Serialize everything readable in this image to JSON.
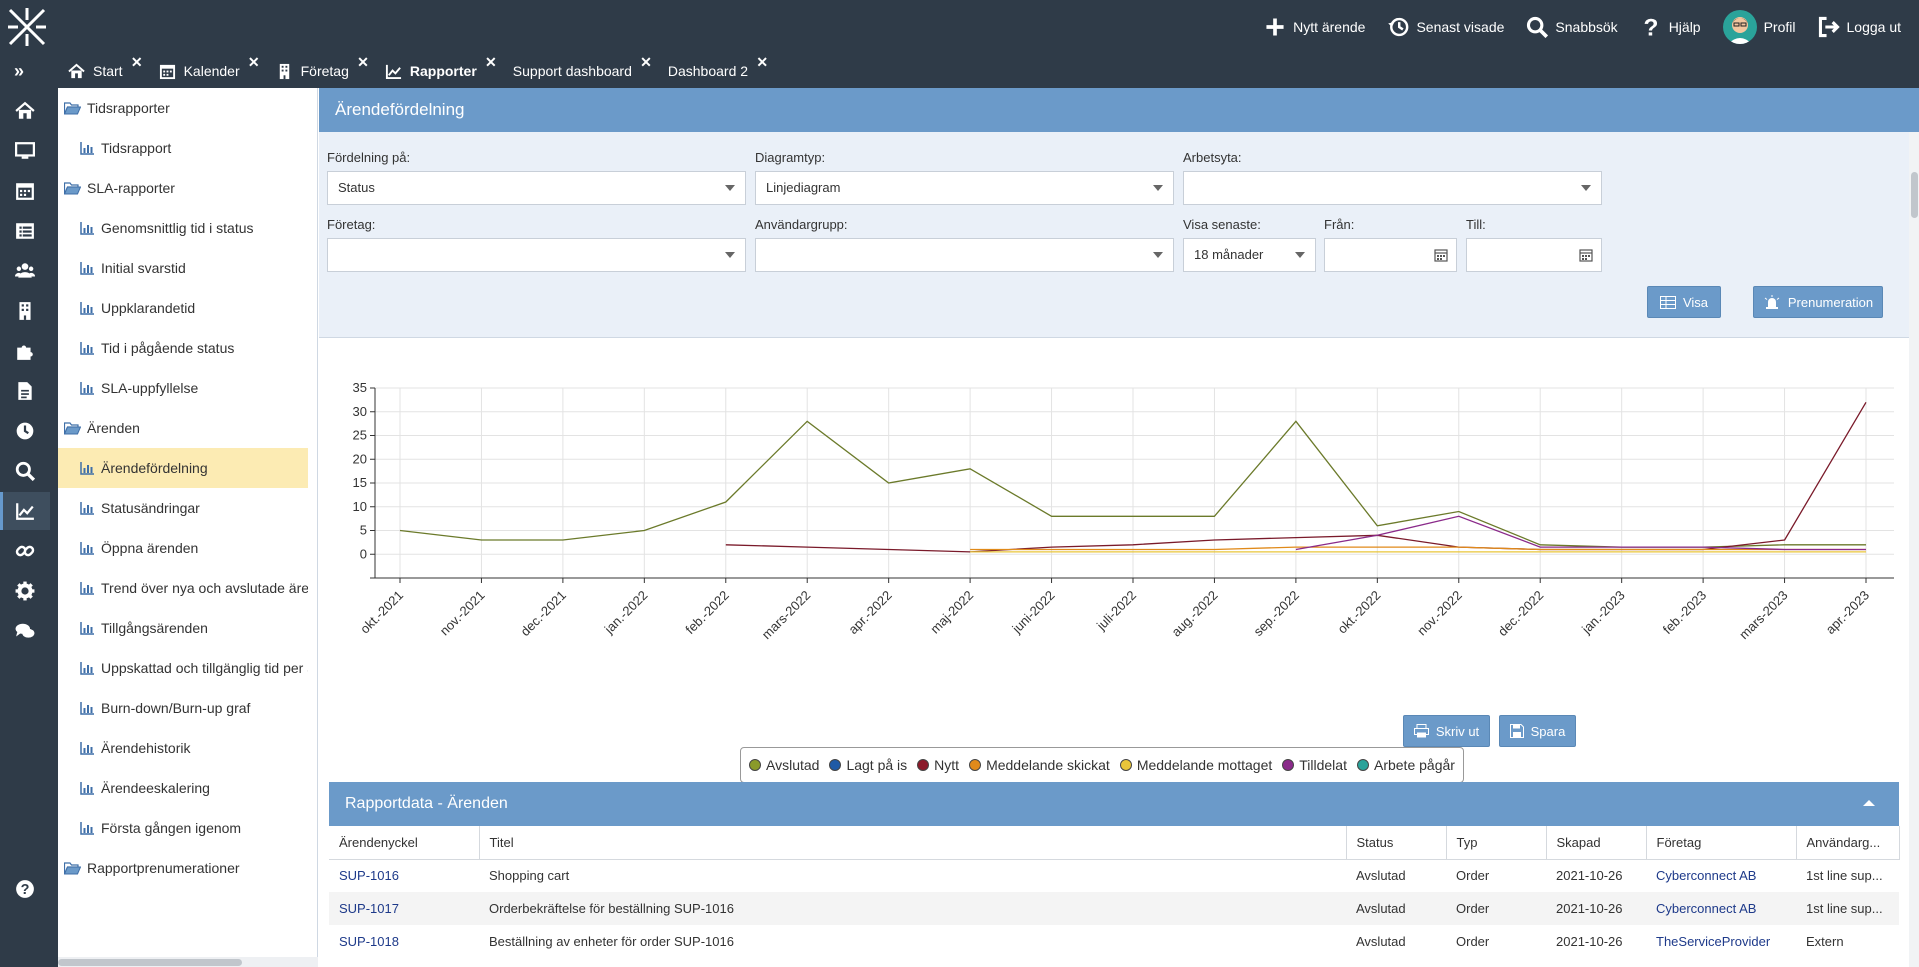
{
  "topbar": {
    "actions": [
      {
        "icon": "plus-icon",
        "label": "Nytt ärende"
      },
      {
        "icon": "history-icon",
        "label": "Senast visade"
      },
      {
        "icon": "search-icon",
        "label": "Snabbsök"
      },
      {
        "icon": "question-icon",
        "label": "Hjälp"
      },
      {
        "icon": "avatar",
        "label": "Profil"
      },
      {
        "icon": "logout-icon",
        "label": "Logga ut"
      }
    ]
  },
  "tabs": [
    {
      "icon": "home-icon",
      "label": "Start"
    },
    {
      "icon": "calendar-icon",
      "label": "Kalender"
    },
    {
      "icon": "building-icon",
      "label": "Företag"
    },
    {
      "icon": "chart-icon",
      "label": "Rapporter",
      "active": true
    },
    {
      "icon": "",
      "label": "Support dashboard"
    },
    {
      "icon": "",
      "label": "Dashboard 2"
    }
  ],
  "rail": [
    "home-icon",
    "monitor-icon",
    "calendar-icon",
    "list-icon",
    "users-icon",
    "building-icon",
    "puzzle-icon",
    "document-icon",
    "clock-icon",
    "search-icon",
    "chart-icon",
    "link-icon",
    "gear-icon",
    "chat-icon",
    "help-icon"
  ],
  "tree": [
    {
      "type": "folder",
      "label": "Tidsrapporter"
    },
    {
      "type": "leaf",
      "label": "Tidsrapport"
    },
    {
      "type": "folder",
      "label": "SLA-rapporter"
    },
    {
      "type": "leaf",
      "label": "Genomsnittlig tid i status"
    },
    {
      "type": "leaf",
      "label": "Initial svarstid"
    },
    {
      "type": "leaf",
      "label": "Uppklarandetid"
    },
    {
      "type": "leaf",
      "label": "Tid i pågående status"
    },
    {
      "type": "leaf",
      "label": "SLA-uppfyllelse"
    },
    {
      "type": "folder",
      "label": "Ärenden"
    },
    {
      "type": "leaf",
      "label": "Ärendefördelning",
      "selected": true
    },
    {
      "type": "leaf",
      "label": "Statusändringar"
    },
    {
      "type": "leaf",
      "label": "Öppna ärenden"
    },
    {
      "type": "leaf",
      "label": "Trend över nya och avslutade ärer"
    },
    {
      "type": "leaf",
      "label": "Tillgångsärenden"
    },
    {
      "type": "leaf",
      "label": "Uppskattad och tillgänglig tid per ä"
    },
    {
      "type": "leaf",
      "label": "Burn-down/Burn-up graf"
    },
    {
      "type": "leaf",
      "label": "Ärendehistorik"
    },
    {
      "type": "leaf",
      "label": "Ärendeeskalering"
    },
    {
      "type": "leaf",
      "label": "Första gången igenom"
    },
    {
      "type": "folder",
      "label": "Rapportprenumerationer"
    }
  ],
  "page": {
    "title": "Ärendefördelning"
  },
  "filters": {
    "fordelning": {
      "label": "Fördelning på:",
      "value": "Status"
    },
    "diagramtyp": {
      "label": "Diagramtyp:",
      "value": "Linjediagram"
    },
    "arbetsyta": {
      "label": "Arbetsyta:",
      "value": ""
    },
    "foretag": {
      "label": "Företag:",
      "value": ""
    },
    "anvandargrupp": {
      "label": "Användargrupp:",
      "value": ""
    },
    "visa_senaste": {
      "label": "Visa senaste:",
      "value": "18 månader"
    },
    "fran": {
      "label": "Från:",
      "value": ""
    },
    "till": {
      "label": "Till:",
      "value": ""
    },
    "visa_button": "Visa",
    "prenumeration_button": "Prenumeration"
  },
  "actions": {
    "print": "Skriv ut",
    "save": "Spara"
  },
  "chart_data": {
    "type": "line",
    "title": "",
    "xlabel": "",
    "ylabel": "",
    "ylim": [
      -5,
      35
    ],
    "yticks": [
      0,
      5,
      10,
      15,
      20,
      25,
      30,
      35
    ],
    "grid": true,
    "legend_position": "bottom",
    "categories": [
      "okt.-2021",
      "nov.-2021",
      "dec.-2021",
      "jan.-2022",
      "feb.-2022",
      "mars-2022",
      "apr.-2022",
      "maj-2022",
      "juni-2022",
      "juli-2022",
      "aug.-2022",
      "sep.-2022",
      "okt.-2022",
      "nov.-2022",
      "dec.-2022",
      "jan.-2023",
      "feb.-2023",
      "mars-2023",
      "apr.-2023"
    ],
    "series": [
      {
        "name": "Avslutad",
        "color": "#8a9a2a",
        "line": "#6b7a2a",
        "values": [
          5,
          3,
          3,
          5,
          11,
          28,
          15,
          18,
          8,
          8,
          8,
          28,
          6,
          9,
          2,
          1.5,
          1.5,
          2,
          2
        ]
      },
      {
        "name": "Lagt på is",
        "color": "#1f5aa6",
        "line": "#1f5aa6",
        "values": [
          null,
          null,
          null,
          null,
          null,
          null,
          null,
          null,
          null,
          null,
          null,
          null,
          null,
          null,
          null,
          null,
          null,
          null,
          null
        ]
      },
      {
        "name": "Nytt",
        "color": "#8b1a2a",
        "line": "#7a1a2a",
        "values": [
          null,
          null,
          null,
          null,
          2,
          1.5,
          1,
          0.5,
          1.5,
          2,
          3,
          3.5,
          4,
          1.5,
          1,
          1,
          1,
          3,
          32
        ]
      },
      {
        "name": "Meddelande skickat",
        "color": "#e08a1a",
        "line": "#e08a1a",
        "values": [
          null,
          null,
          null,
          null,
          null,
          null,
          null,
          1,
          1,
          1,
          1,
          1.5,
          1.5,
          1.5,
          1,
          1,
          1,
          1,
          1
        ]
      },
      {
        "name": "Meddelande mottaget",
        "color": "#e8c53a",
        "line": "#e8c53a",
        "values": [
          null,
          null,
          null,
          null,
          null,
          null,
          null,
          0.5,
          0.5,
          0.5,
          0.5,
          0.5,
          0.5,
          0.5,
          0.5,
          0.5,
          0.5,
          0.5,
          0.5
        ]
      },
      {
        "name": "Tilldelat",
        "color": "#8a2a8a",
        "line": "#8a2a8a",
        "values": [
          null,
          null,
          null,
          null,
          null,
          null,
          null,
          null,
          null,
          null,
          null,
          1,
          4,
          8,
          1.5,
          1.5,
          1.5,
          1,
          1
        ]
      },
      {
        "name": "Arbete pågår",
        "color": "#2aa39a",
        "line": "#2aa39a",
        "values": [
          null,
          null,
          null,
          null,
          null,
          null,
          null,
          null,
          null,
          null,
          null,
          null,
          null,
          null,
          null,
          null,
          null,
          null,
          null
        ]
      }
    ]
  },
  "report": {
    "title": "Rapportdata - Ärenden",
    "columns": [
      "Ärendenyckel",
      "Titel",
      "Status",
      "Typ",
      "Skapad",
      "Företag",
      "Användarg..."
    ],
    "rows": [
      [
        "SUP-1016",
        "Shopping cart",
        "Avslutad",
        "Order",
        "2021-10-26",
        "Cyberconnect AB",
        "1st line sup..."
      ],
      [
        "SUP-1017",
        "Orderbekräftelse för beställning SUP-1016",
        "Avslutad",
        "Order",
        "2021-10-26",
        "Cyberconnect AB",
        "1st line sup..."
      ],
      [
        "SUP-1018",
        "Beställning av enheter för order SUP-1016",
        "Avslutad",
        "Order",
        "2021-10-26",
        "TheServiceProvider",
        "Extern"
      ]
    ]
  }
}
